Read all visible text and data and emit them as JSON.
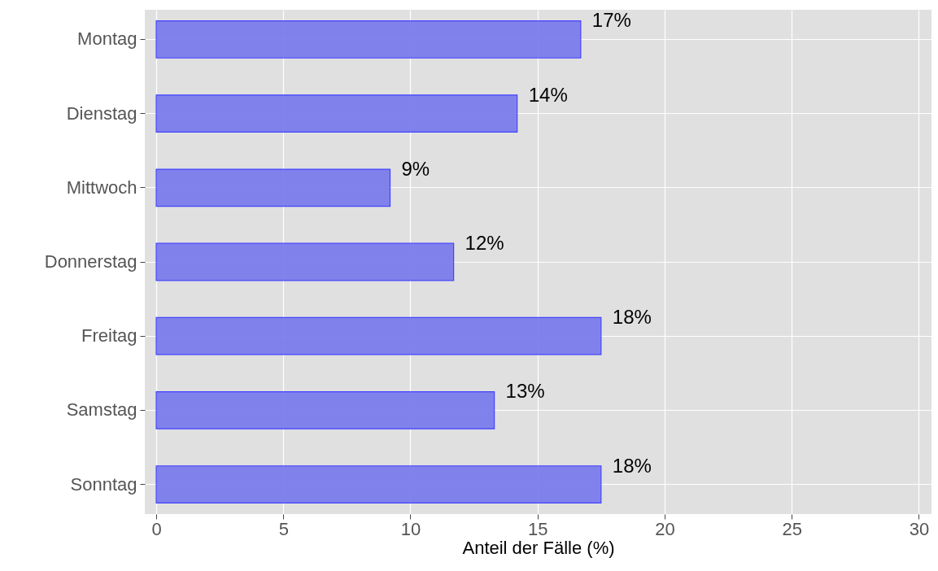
{
  "chart_data": {
    "type": "bar",
    "orientation": "horizontal",
    "xlabel": "Anteil der Fälle (%)",
    "categories": [
      "Montag",
      "Dienstag",
      "Mittwoch",
      "Donnerstag",
      "Freitag",
      "Samstag",
      "Sonntag"
    ],
    "values": [
      16.7,
      14.2,
      9.2,
      11.7,
      17.5,
      13.3,
      17.5
    ],
    "value_labels": [
      "17%",
      "14%",
      "9%",
      "12%",
      "18%",
      "13%",
      "18%"
    ],
    "color": "#7777ee",
    "xlim": [
      -0.45,
      30.5
    ],
    "xticks": [
      0,
      5,
      10,
      15,
      20,
      25,
      30
    ],
    "grid": true
  }
}
